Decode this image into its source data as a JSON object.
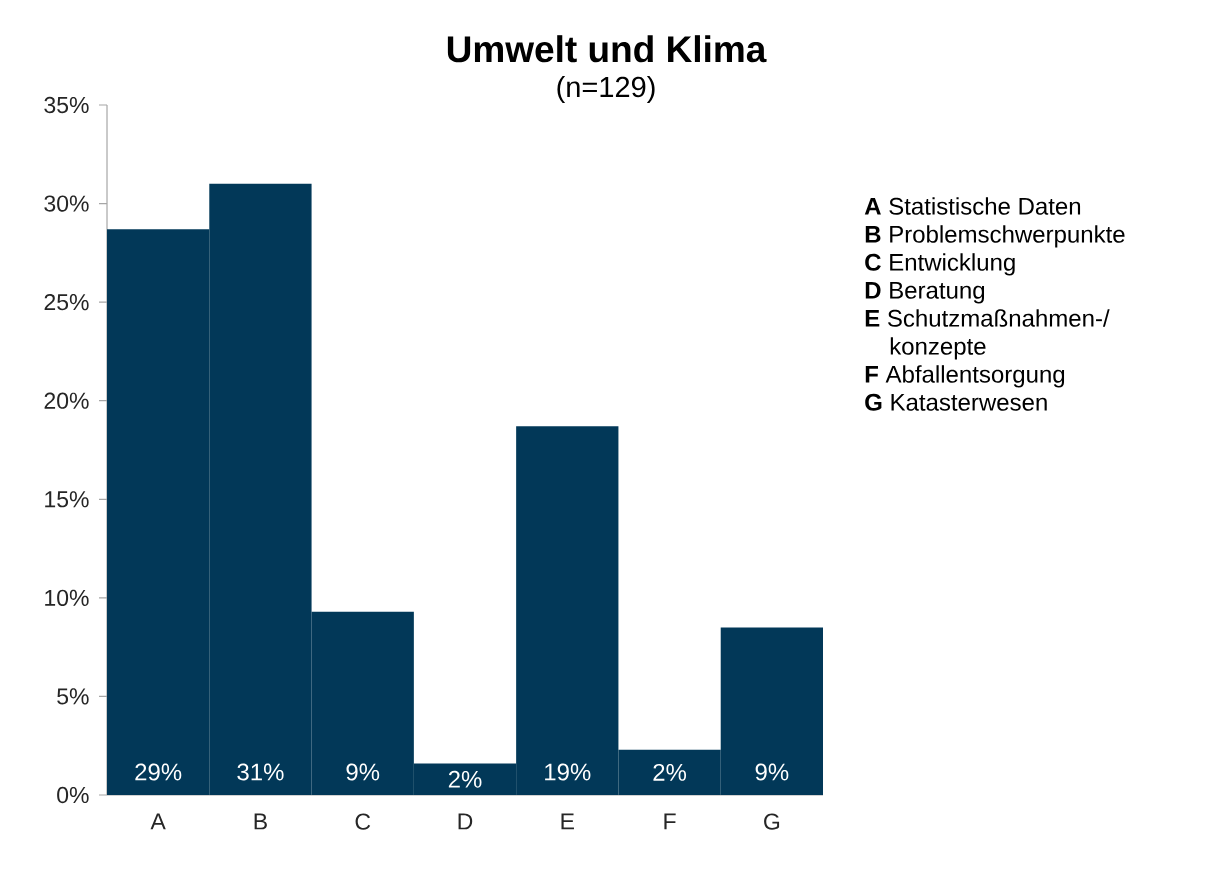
{
  "chart_data": {
    "type": "bar",
    "title": "Umwelt und Klima",
    "subtitle": "(n=129)",
    "categories": [
      "A",
      "B",
      "C",
      "D",
      "E",
      "F",
      "G"
    ],
    "values": [
      28.7,
      31.0,
      9.3,
      1.6,
      18.7,
      2.3,
      8.5
    ],
    "color": "#023858",
    "value_labels": [
      "29%",
      "31%",
      "9%",
      "2%",
      "19%",
      "2%",
      "9%"
    ],
    "ylim": [
      0,
      35
    ],
    "yticks": [
      {
        "value": 0,
        "label": "0%"
      },
      {
        "value": 5,
        "label": "5%"
      },
      {
        "value": 10,
        "label": "10%"
      },
      {
        "value": 15,
        "label": "15%"
      },
      {
        "value": 20,
        "label": "20%"
      },
      {
        "value": 25,
        "label": "25%"
      },
      {
        "value": 30,
        "label": "30%"
      },
      {
        "value": 35,
        "label": "35%"
      }
    ],
    "annotations": [
      "**A** Statistische Daten",
      "**B** Problemschwerpunkte",
      "**C** Entwicklung",
      "**D** Beratung",
      "**E** Schutzmaßnahmen-/ konzepte",
      "**F** Abfallentsorgung",
      "**G** Katasterwesen"
    ]
  }
}
